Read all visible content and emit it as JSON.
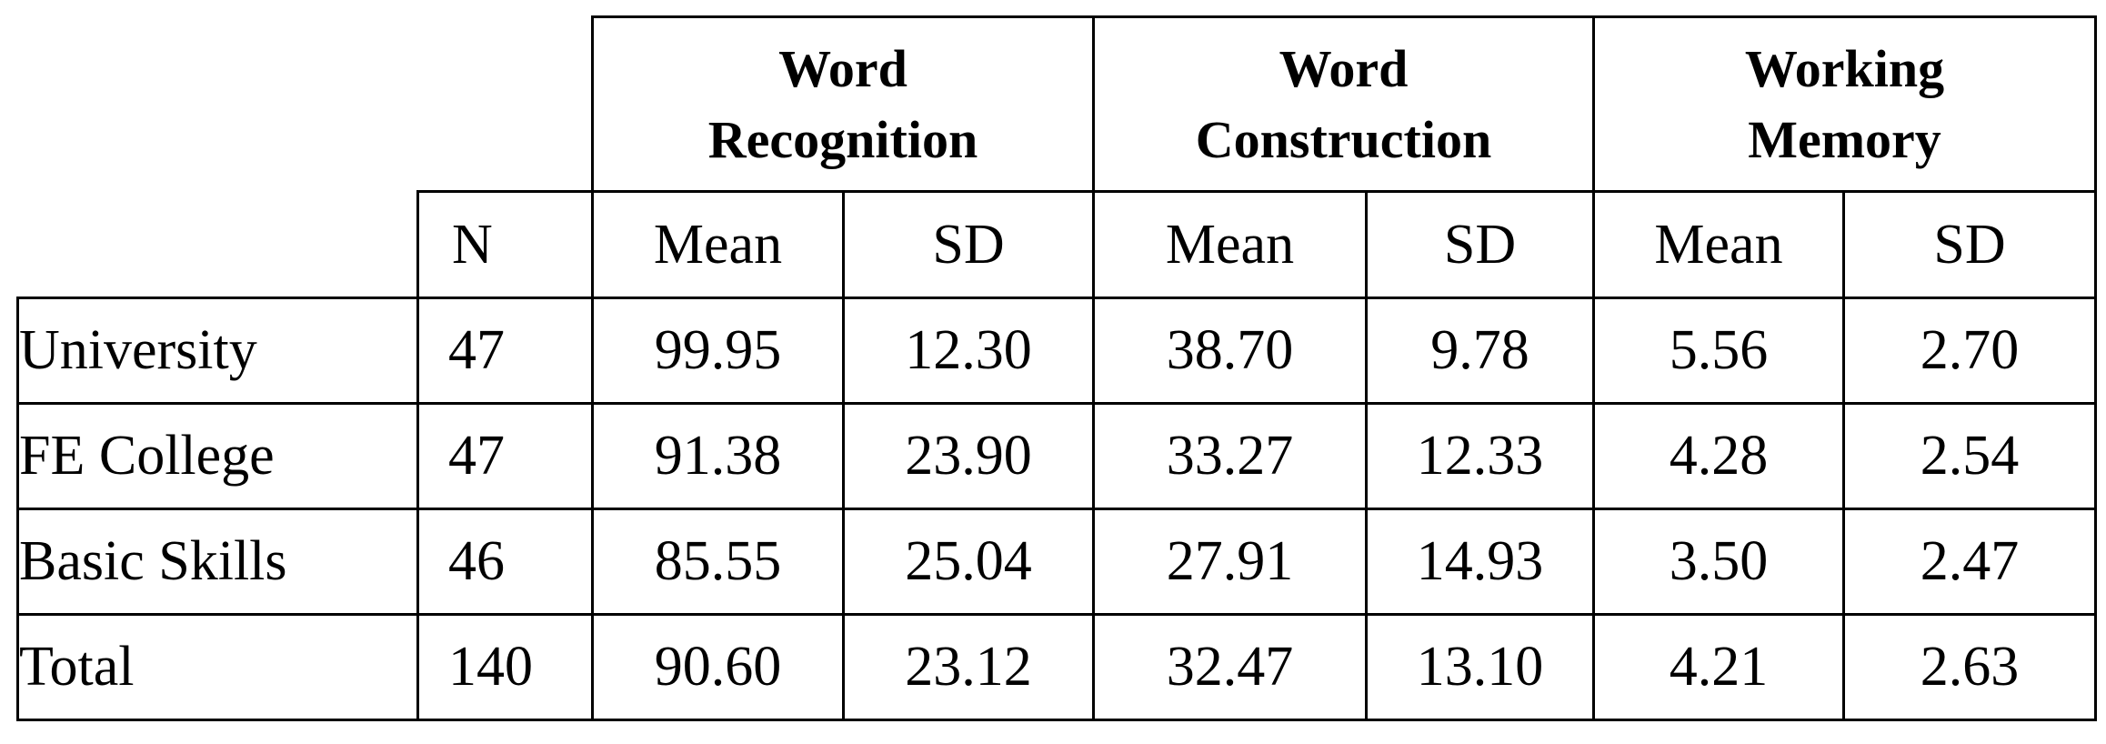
{
  "table": {
    "groups": [
      {
        "line1": "Word",
        "line2": "Recognition"
      },
      {
        "line1": "Word",
        "line2": "Construction"
      },
      {
        "line1": "Working",
        "line2": "Memory"
      }
    ],
    "subheaders": {
      "n": "N",
      "mean": "Mean",
      "sd": "SD"
    },
    "rows": [
      {
        "label": "University",
        "n": "47",
        "wr_mean": "99.95",
        "wr_sd": "12.30",
        "wc_mean": "38.70",
        "wc_sd": "9.78",
        "wm_mean": "5.56",
        "wm_sd": "2.70"
      },
      {
        "label": "FE College",
        "n": "47",
        "wr_mean": "91.38",
        "wr_sd": "23.90",
        "wc_mean": "33.27",
        "wc_sd": "12.33",
        "wm_mean": "4.28",
        "wm_sd": "2.54"
      },
      {
        "label": "Basic Skills",
        "n": "46",
        "wr_mean": "85.55",
        "wr_sd": "25.04",
        "wc_mean": "27.91",
        "wc_sd": "14.93",
        "wm_mean": "3.50",
        "wm_sd": "2.47"
      },
      {
        "label": "Total",
        "n": "140",
        "wr_mean": "90.60",
        "wr_sd": "23.12",
        "wc_mean": "32.47",
        "wc_sd": "13.10",
        "wm_mean": "4.21",
        "wm_sd": "2.63"
      }
    ]
  }
}
